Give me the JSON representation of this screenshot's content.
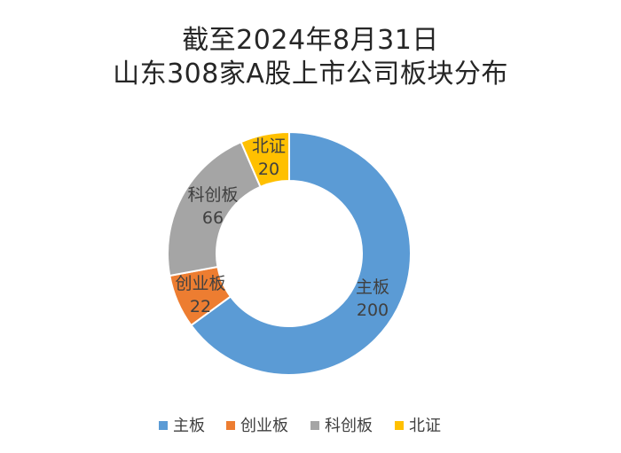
{
  "chart_data": {
    "type": "pie",
    "variant": "doughnut",
    "title": "截至2024年8月31日\n山东308家A股上市公司板块分布",
    "title_lines": [
      "截至2024年8月31日",
      "山东308家A股上市公司板块分布"
    ],
    "categories": [
      "主板",
      "创业板",
      "科创板",
      "北证"
    ],
    "values": [
      200,
      22,
      66,
      20
    ],
    "colors": [
      "#5B9BD5",
      "#ED7D31",
      "#A5A5A5",
      "#FFC000"
    ],
    "legend_position": "bottom",
    "data_labels": "category and value"
  }
}
